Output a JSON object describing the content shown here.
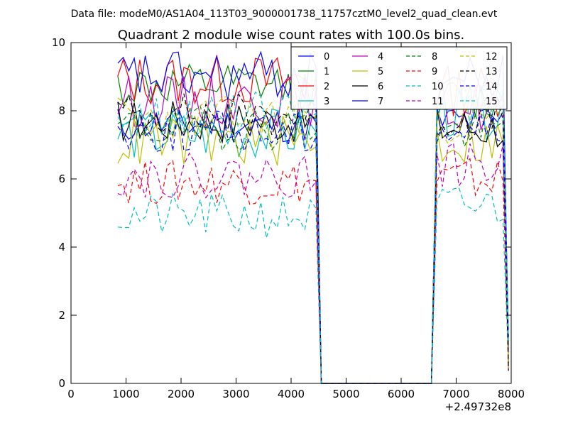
{
  "figure": {
    "suptitle": "Data file: modeM0/AS1A04_113T03_9000001738_11757cztM0_level2_quad_clean.evt",
    "x_offset_label": "+2.49732e8"
  },
  "chart_data": {
    "type": "line",
    "title": "Quadrant 2 module wise count rates with 100.0s bins.",
    "xlabel": "",
    "ylabel": "",
    "xlim": [
      0,
      8000
    ],
    "ylim": [
      0,
      10
    ],
    "x_ticks": [
      0,
      1000,
      2000,
      3000,
      4000,
      5000,
      6000,
      7000,
      8000
    ],
    "y_ticks": [
      0,
      2,
      4,
      6,
      8,
      10
    ],
    "grid": false,
    "legend_position": "top-right",
    "legend_columns": 4,
    "x_segments": [
      {
        "start": 850,
        "end": 4450,
        "step": 100
      },
      {
        "start": 4550,
        "end": 6550,
        "step": 100
      },
      {
        "start": 6650,
        "end": 7850,
        "step": 100
      },
      {
        "start": 7950,
        "end": 7950,
        "step": 100
      }
    ],
    "series": [
      {
        "name": "0",
        "color": "#0000ff",
        "dash": "solid",
        "base1": 7.6,
        "base2": 7.7,
        "amp": 0.25,
        "seed": 11
      },
      {
        "name": "1",
        "color": "#008000",
        "dash": "solid",
        "base1": 8.7,
        "base2": 8.3,
        "amp": 0.3,
        "seed": 12
      },
      {
        "name": "2",
        "color": "#ff0000",
        "dash": "solid",
        "base1": 8.9,
        "base2": 8.6,
        "amp": 0.35,
        "seed": 13
      },
      {
        "name": "3",
        "color": "#00bfbf",
        "dash": "solid",
        "base1": 7.3,
        "base2": 7.9,
        "amp": 0.35,
        "seed": 14
      },
      {
        "name": "4",
        "color": "#bf00bf",
        "dash": "solid",
        "base1": 8.3,
        "base2": 8.1,
        "amp": 0.35,
        "seed": 15
      },
      {
        "name": "5",
        "color": "#bfbf00",
        "dash": "solid",
        "base1": 7.1,
        "base2": 7.1,
        "amp": 0.35,
        "seed": 16
      },
      {
        "name": "6",
        "color": "#000000",
        "dash": "solid",
        "base1": 7.7,
        "base2": 7.5,
        "amp": 0.3,
        "seed": 17
      },
      {
        "name": "7",
        "color": "#0000ff",
        "dash": "solid",
        "base1": 9.0,
        "base2": 8.9,
        "amp": 0.35,
        "seed": 18
      },
      {
        "name": "8",
        "color": "#008000",
        "dash": "dashed",
        "base1": 7.5,
        "base2": 7.4,
        "amp": 0.3,
        "seed": 19
      },
      {
        "name": "9",
        "color": "#ff0000",
        "dash": "dashed",
        "base1": 5.9,
        "base2": 6.0,
        "amp": 0.3,
        "seed": 20
      },
      {
        "name": "10",
        "color": "#00bfbf",
        "dash": "dashed",
        "base1": 4.9,
        "base2": 5.2,
        "amp": 0.3,
        "seed": 21
      },
      {
        "name": "11",
        "color": "#bf00bf",
        "dash": "dashed",
        "base1": 6.1,
        "base2": 6.4,
        "amp": 0.3,
        "seed": 22
      },
      {
        "name": "12",
        "color": "#bfbf00",
        "dash": "dashed",
        "base1": 7.8,
        "base2": 7.7,
        "amp": 0.3,
        "seed": 23
      },
      {
        "name": "13",
        "color": "#000000",
        "dash": "dashed",
        "base1": 7.9,
        "base2": 7.8,
        "amp": 0.3,
        "seed": 24
      },
      {
        "name": "14",
        "color": "#0000ff",
        "dash": "dashed",
        "base1": 7.4,
        "base2": 7.5,
        "amp": 0.3,
        "seed": 25
      },
      {
        "name": "15",
        "color": "#00bfbf",
        "dash": "dashed",
        "base1": 7.9,
        "base2": 8.2,
        "amp": 0.3,
        "seed": 26
      }
    ]
  }
}
